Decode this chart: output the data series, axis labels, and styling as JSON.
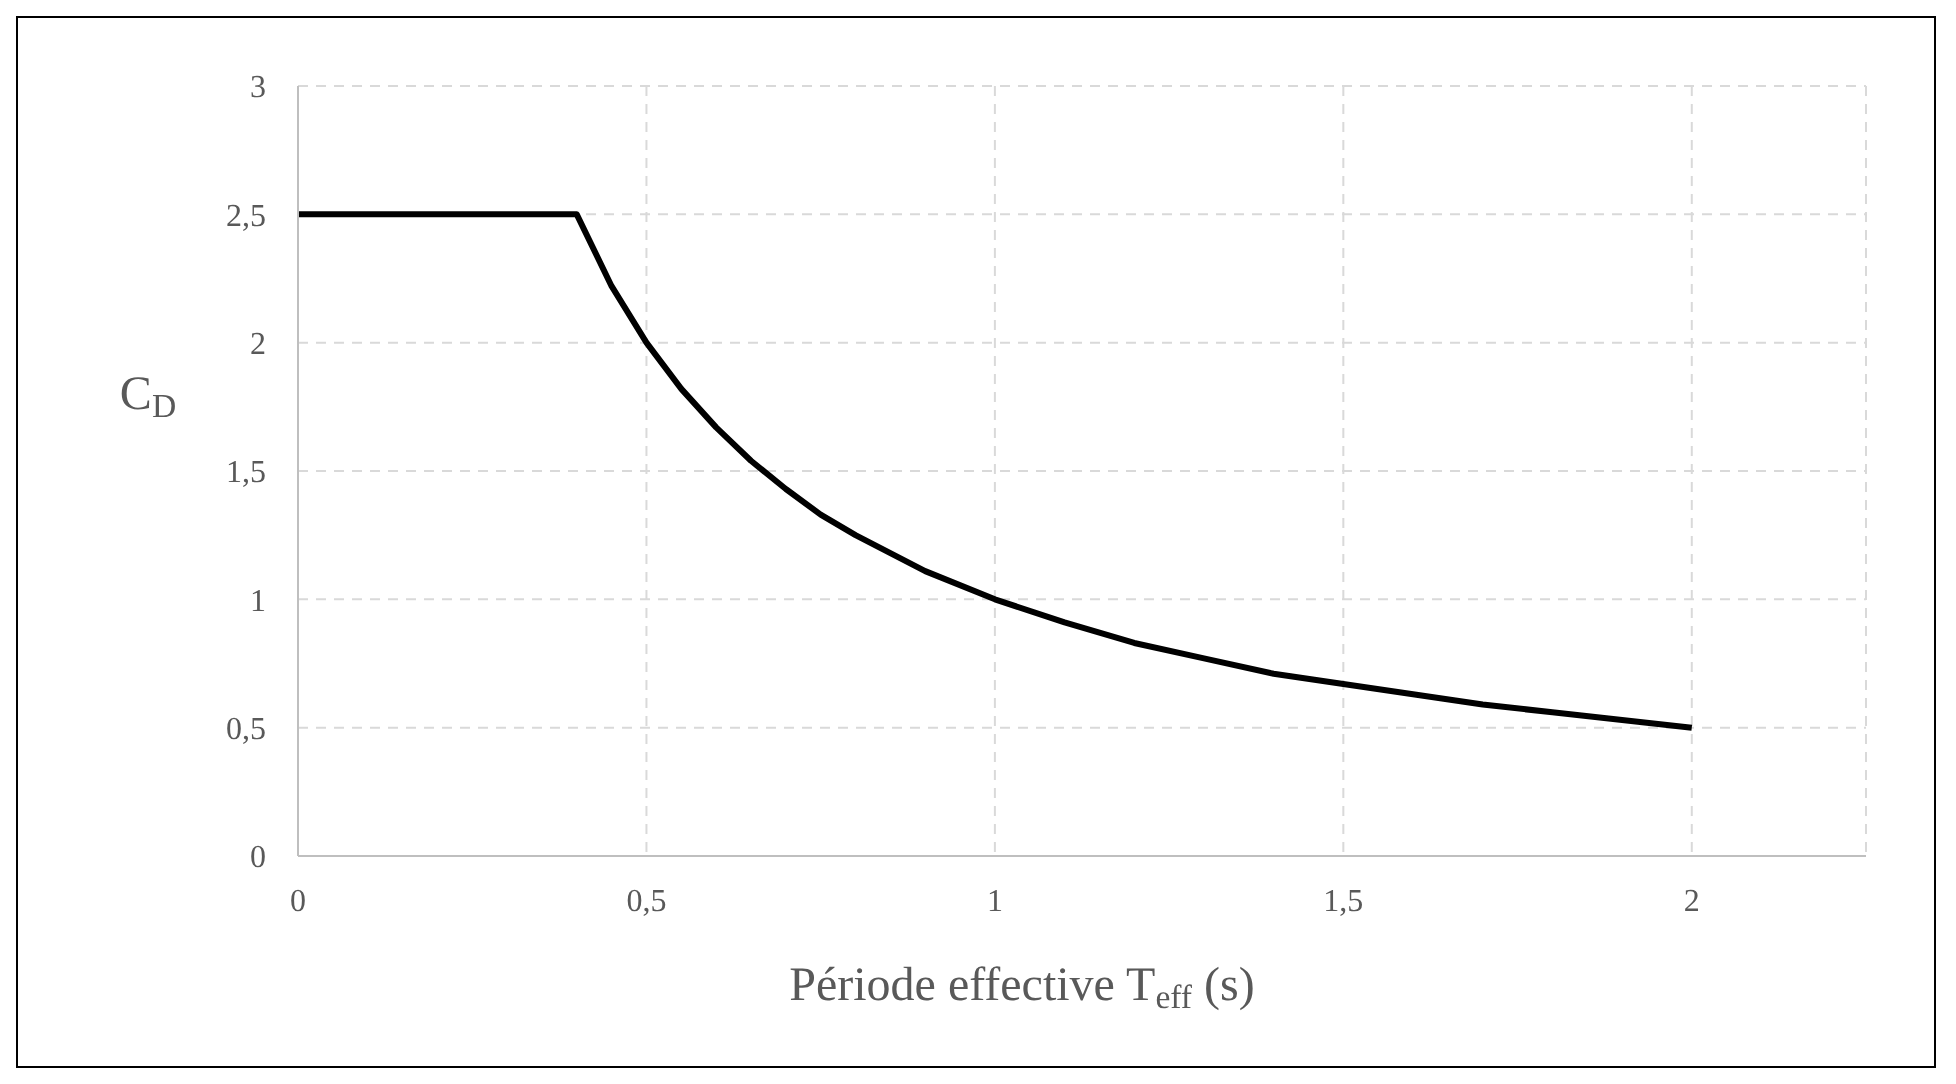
{
  "chart_data": {
    "type": "line",
    "xlabel": "Période effective T$_{eff}$ (s)",
    "ylabel": "C$_{D}$",
    "x": [
      0,
      0.4,
      0.45,
      0.5,
      0.55,
      0.6,
      0.65,
      0.7,
      0.75,
      0.8,
      0.9,
      1,
      1.1,
      1.2,
      1.3,
      1.4,
      1.5,
      1.6,
      1.7,
      1.8,
      1.9,
      2
    ],
    "series": [
      {
        "color": "#000000",
        "values": [
          2.5,
          2.5,
          2.22,
          2,
          1.82,
          1.67,
          1.54,
          1.43,
          1.33,
          1.25,
          1.11,
          1,
          0.91,
          0.83,
          0.77,
          0.71,
          0.67,
          0.63,
          0.59,
          0.56,
          0.53,
          0.5
        ]
      }
    ],
    "xlim": [
      0,
      2.25
    ],
    "xticks": [
      0,
      {
        "value": 0.5,
        "label": "0,5"
      },
      1,
      {
        "value": 1.5,
        "label": "1,5"
      },
      2
    ],
    "ylim": [
      0,
      3
    ],
    "yticks": [
      0,
      {
        "value": 0.5,
        "label": "0,5"
      },
      1,
      {
        "value": 1.5,
        "label": "1,5"
      },
      2,
      {
        "value": 2.5,
        "label": "2,5"
      },
      3
    ],
    "grid": true,
    "marker": "none",
    "line_style": "solid"
  }
}
